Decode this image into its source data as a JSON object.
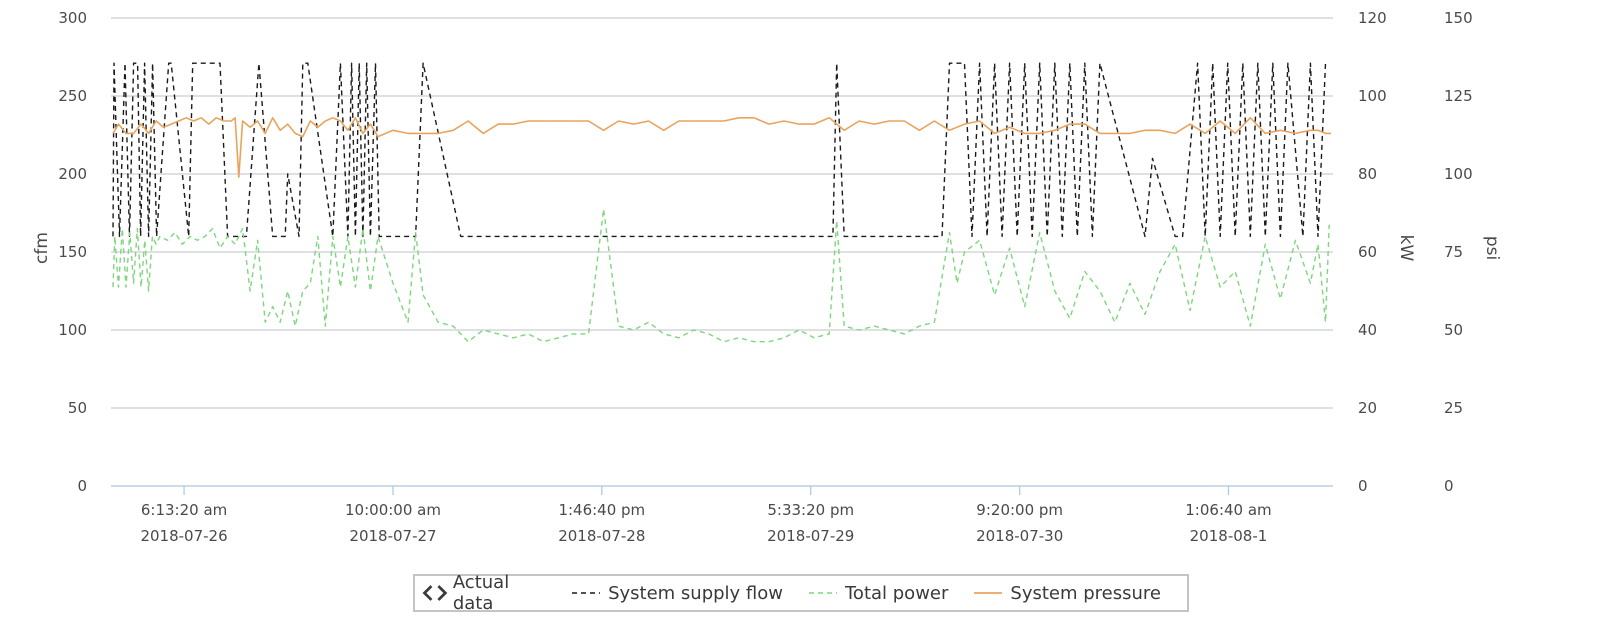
{
  "chart_data": {
    "type": "line",
    "xlabel": "",
    "x_ticks": [
      {
        "time": "6:13:20 am",
        "date": "2018-07-26"
      },
      {
        "time": "10:00:00 am",
        "date": "2018-07-27"
      },
      {
        "time": "1:46:40 pm",
        "date": "2018-07-28"
      },
      {
        "time": "5:33:20 pm",
        "date": "2018-07-29"
      },
      {
        "time": "9:20:00 pm",
        "date": "2018-07-30"
      },
      {
        "time": "1:06:40 am",
        "date": "2018-08-1"
      }
    ],
    "x_range": [
      "2018-07-25T20:30",
      "2018-08-01T15:00"
    ],
    "axes": {
      "left": {
        "label": "cfm",
        "min": 0,
        "max": 300,
        "ticks": [
          0,
          50,
          100,
          150,
          200,
          250,
          300
        ]
      },
      "right1": {
        "label": "kW",
        "min": 0,
        "max": 120,
        "ticks": [
          0,
          20,
          40,
          60,
          80,
          100,
          120
        ]
      },
      "right2": {
        "label": "psi",
        "min": 0,
        "max": 150,
        "ticks": [
          0,
          25,
          50,
          75,
          100,
          125,
          150
        ]
      }
    },
    "grid": true,
    "legend": {
      "placement": "bottom-center",
      "toggle_label": "Actual data",
      "items": [
        "System supply flow",
        "Total power",
        "System pressure"
      ]
    },
    "series": [
      {
        "name": "System supply flow",
        "axis": "left",
        "color": "#1a1a1a",
        "dash": "5,4",
        "x": [
          "2018-07-25T20:30",
          "2018-07-25T20:54",
          "2018-07-25T21:38",
          "2018-07-25T22:22",
          "2018-07-25T22:58",
          "2018-07-25T23:30",
          "2018-07-26T00:02",
          "2018-07-26T00:26",
          "2018-07-26T00:58",
          "2018-07-26T01:30",
          "2018-07-26T02:02",
          "2018-07-26T02:34",
          "2018-07-26T04:10",
          "2018-07-26T04:30",
          "2018-07-26T06:50",
          "2018-07-26T07:22",
          "2018-07-26T11:00",
          "2018-07-26T12:00",
          "2018-07-26T14:30",
          "2018-07-26T16:10",
          "2018-07-26T18:00",
          "2018-07-26T19:40",
          "2018-07-26T20:00",
          "2018-07-26T21:30",
          "2018-07-26T22:00",
          "2018-07-26T22:40",
          "2018-07-27T02:00",
          "2018-07-27T03:00",
          "2018-07-27T04:00",
          "2018-07-27T04:30",
          "2018-07-27T05:00",
          "2018-07-27T05:30",
          "2018-07-27T06:00",
          "2018-07-27T06:30",
          "2018-07-27T07:00",
          "2018-07-27T07:40",
          "2018-07-27T08:10",
          "2018-07-27T13:00",
          "2018-07-27T14:00",
          "2018-07-27T19:00",
          "2018-07-27T20:00",
          "2018-07-29T20:30",
          "2018-07-29T21:00",
          "2018-07-29T22:00",
          "2018-07-30T11:00",
          "2018-07-30T12:00",
          "2018-07-30T14:00",
          "2018-07-30T15:00",
          "2018-07-30T16:00",
          "2018-07-30T17:00",
          "2018-07-30T18:00",
          "2018-07-30T19:00",
          "2018-07-30T20:00",
          "2018-07-30T21:00",
          "2018-07-30T22:00",
          "2018-07-30T23:00",
          "2018-07-31T00:00",
          "2018-07-31T01:00",
          "2018-07-31T02:00",
          "2018-07-31T03:00",
          "2018-07-31T04:00",
          "2018-07-31T05:00",
          "2018-07-31T06:00",
          "2018-07-31T07:00",
          "2018-07-31T08:00",
          "2018-07-31T14:00",
          "2018-07-31T15:00",
          "2018-07-31T18:00",
          "2018-07-31T19:00",
          "2018-07-31T21:00",
          "2018-07-31T22:00",
          "2018-07-31T23:00",
          "2018-08-01T00:00",
          "2018-08-01T01:00",
          "2018-08-01T02:00",
          "2018-08-01T03:00",
          "2018-08-01T04:00",
          "2018-08-01T05:00",
          "2018-08-01T06:00",
          "2018-08-01T07:00",
          "2018-08-01T08:00",
          "2018-08-01T09:00",
          "2018-08-01T11:00",
          "2018-08-01T12:00",
          "2018-08-01T13:00",
          "2018-08-01T14:00"
        ],
        "y": [
          160,
          271,
          160,
          271,
          160,
          271,
          271,
          160,
          271,
          160,
          271,
          160,
          271,
          271,
          160,
          271,
          271,
          160,
          160,
          271,
          160,
          160,
          200,
          160,
          271,
          271,
          160,
          271,
          160,
          271,
          160,
          271,
          160,
          271,
          160,
          271,
          160,
          160,
          271,
          160,
          160,
          160,
          271,
          160,
          160,
          271,
          271,
          160,
          271,
          160,
          271,
          160,
          271,
          160,
          271,
          160,
          271,
          160,
          271,
          160,
          271,
          160,
          271,
          160,
          271,
          160,
          210,
          160,
          160,
          271,
          160,
          271,
          160,
          271,
          160,
          271,
          160,
          271,
          160,
          271,
          160,
          271,
          160,
          271,
          160,
          271
        ]
      },
      {
        "name": "Total power",
        "axis": "right1",
        "color": "#7ed67e",
        "dash": "5,4",
        "x": [
          "2018-07-25T20:30",
          "2018-07-25T21:00",
          "2018-07-25T21:30",
          "2018-07-25T22:00",
          "2018-07-25T22:30",
          "2018-07-25T23:00",
          "2018-07-25T23:30",
          "2018-07-26T00:00",
          "2018-07-26T00:30",
          "2018-07-26T01:00",
          "2018-07-26T01:30",
          "2018-07-26T02:00",
          "2018-07-26T02:30",
          "2018-07-26T03:00",
          "2018-07-26T04:00",
          "2018-07-26T05:00",
          "2018-07-26T06:00",
          "2018-07-26T07:00",
          "2018-07-26T08:00",
          "2018-07-26T09:00",
          "2018-07-26T10:00",
          "2018-07-26T11:00",
          "2018-07-26T12:00",
          "2018-07-26T13:00",
          "2018-07-26T14:00",
          "2018-07-26T15:00",
          "2018-07-26T16:00",
          "2018-07-26T17:00",
          "2018-07-26T18:00",
          "2018-07-26T19:00",
          "2018-07-26T20:00",
          "2018-07-26T21:00",
          "2018-07-26T22:00",
          "2018-07-26T23:00",
          "2018-07-27T00:00",
          "2018-07-27T01:00",
          "2018-07-27T02:00",
          "2018-07-27T03:00",
          "2018-07-27T04:00",
          "2018-07-27T05:00",
          "2018-07-27T06:00",
          "2018-07-27T07:00",
          "2018-07-27T08:00",
          "2018-07-27T10:00",
          "2018-07-27T12:00",
          "2018-07-27T13:00",
          "2018-07-27T14:00",
          "2018-07-27T16:00",
          "2018-07-27T18:00",
          "2018-07-27T20:00",
          "2018-07-27T22:00",
          "2018-07-28T00:00",
          "2018-07-28T02:00",
          "2018-07-28T04:00",
          "2018-07-28T06:00",
          "2018-07-28T08:00",
          "2018-07-28T10:00",
          "2018-07-28T12:00",
          "2018-07-28T14:00",
          "2018-07-28T16:00",
          "2018-07-28T18:00",
          "2018-07-28T20:00",
          "2018-07-28T22:00",
          "2018-07-29T00:00",
          "2018-07-29T02:00",
          "2018-07-29T04:00",
          "2018-07-29T06:00",
          "2018-07-29T08:00",
          "2018-07-29T10:00",
          "2018-07-29T12:00",
          "2018-07-29T14:00",
          "2018-07-29T16:00",
          "2018-07-29T18:00",
          "2018-07-29T20:00",
          "2018-07-29T21:00",
          "2018-07-29T22:00",
          "2018-07-30T00:00",
          "2018-07-30T02:00",
          "2018-07-30T04:00",
          "2018-07-30T06:00",
          "2018-07-30T08:00",
          "2018-07-30T10:00",
          "2018-07-30T12:00",
          "2018-07-30T13:00",
          "2018-07-30T14:00",
          "2018-07-30T16:00",
          "2018-07-30T18:00",
          "2018-07-30T20:00",
          "2018-07-30T22:00",
          "2018-07-31T00:00",
          "2018-07-31T02:00",
          "2018-07-31T04:00",
          "2018-07-31T06:00",
          "2018-07-31T08:00",
          "2018-07-31T10:00",
          "2018-07-31T12:00",
          "2018-07-31T14:00",
          "2018-07-31T16:00",
          "2018-07-31T18:00",
          "2018-07-31T20:00",
          "2018-07-31T22:00",
          "2018-08-01T00:00",
          "2018-08-01T02:00",
          "2018-08-01T04:00",
          "2018-08-01T06:00",
          "2018-08-01T08:00",
          "2018-08-01T10:00",
          "2018-08-01T12:00",
          "2018-08-01T13:00",
          "2018-08-01T14:00",
          "2018-08-01T14:30"
        ],
        "y": [
          51,
          64,
          51,
          66,
          51,
          65,
          52,
          66,
          51,
          63,
          50,
          64,
          62,
          64,
          63,
          65,
          62,
          64,
          63,
          64,
          66,
          61,
          64,
          62,
          66,
          50,
          63,
          42,
          46,
          42,
          50,
          41,
          50,
          52,
          64,
          41,
          64,
          51,
          64,
          51,
          66,
          50,
          64,
          52,
          42,
          65,
          49,
          42,
          41,
          37,
          40,
          39,
          38,
          39,
          37,
          38,
          39,
          39,
          71,
          41,
          40,
          42,
          39,
          38,
          40,
          39,
          37,
          38,
          37,
          37,
          38,
          40,
          38,
          39,
          68,
          41,
          40,
          41,
          40,
          39,
          41,
          42,
          65,
          52,
          60,
          63,
          49,
          61,
          46,
          65,
          50,
          43,
          55,
          50,
          42,
          52,
          44,
          55,
          62,
          45,
          64,
          51,
          55,
          41,
          62,
          48,
          63,
          52,
          62,
          42,
          67
        ]
      },
      {
        "name": "System pressure",
        "axis": "right2",
        "color": "#e8a45e",
        "dash": "",
        "x": [
          "2018-07-25T20:30",
          "2018-07-25T21:30",
          "2018-07-25T22:30",
          "2018-07-25T23:30",
          "2018-07-26T00:30",
          "2018-07-26T01:30",
          "2018-07-26T02:30",
          "2018-07-26T03:30",
          "2018-07-26T04:30",
          "2018-07-26T05:30",
          "2018-07-26T06:30",
          "2018-07-26T07:30",
          "2018-07-26T08:30",
          "2018-07-26T09:30",
          "2018-07-26T10:30",
          "2018-07-26T11:30",
          "2018-07-26T12:30",
          "2018-07-26T13:00",
          "2018-07-26T13:30",
          "2018-07-26T14:00",
          "2018-07-26T15:00",
          "2018-07-26T16:00",
          "2018-07-26T17:00",
          "2018-07-26T18:00",
          "2018-07-26T19:00",
          "2018-07-26T20:00",
          "2018-07-26T21:00",
          "2018-07-26T22:00",
          "2018-07-26T23:00",
          "2018-07-27T00:00",
          "2018-07-27T01:00",
          "2018-07-27T02:00",
          "2018-07-27T03:00",
          "2018-07-27T04:00",
          "2018-07-27T05:00",
          "2018-07-27T06:00",
          "2018-07-27T07:00",
          "2018-07-27T08:00",
          "2018-07-27T10:00",
          "2018-07-27T12:00",
          "2018-07-27T14:00",
          "2018-07-27T16:00",
          "2018-07-27T18:00",
          "2018-07-27T20:00",
          "2018-07-27T22:00",
          "2018-07-28T00:00",
          "2018-07-28T02:00",
          "2018-07-28T04:00",
          "2018-07-28T06:00",
          "2018-07-28T08:00",
          "2018-07-28T10:00",
          "2018-07-28T12:00",
          "2018-07-28T14:00",
          "2018-07-28T16:00",
          "2018-07-28T18:00",
          "2018-07-28T20:00",
          "2018-07-28T22:00",
          "2018-07-29T00:00",
          "2018-07-29T02:00",
          "2018-07-29T04:00",
          "2018-07-29T06:00",
          "2018-07-29T08:00",
          "2018-07-29T10:00",
          "2018-07-29T12:00",
          "2018-07-29T14:00",
          "2018-07-29T16:00",
          "2018-07-29T18:00",
          "2018-07-29T20:00",
          "2018-07-29T22:00",
          "2018-07-30T00:00",
          "2018-07-30T02:00",
          "2018-07-30T04:00",
          "2018-07-30T06:00",
          "2018-07-30T08:00",
          "2018-07-30T10:00",
          "2018-07-30T12:00",
          "2018-07-30T14:00",
          "2018-07-30T16:00",
          "2018-07-30T18:00",
          "2018-07-30T20:00",
          "2018-07-30T22:00",
          "2018-07-31T00:00",
          "2018-07-31T02:00",
          "2018-07-31T04:00",
          "2018-07-31T06:00",
          "2018-07-31T08:00",
          "2018-07-31T10:00",
          "2018-07-31T12:00",
          "2018-07-31T14:00",
          "2018-07-31T16:00",
          "2018-07-31T18:00",
          "2018-07-31T20:00",
          "2018-07-31T22:00",
          "2018-08-01T00:00",
          "2018-08-01T02:00",
          "2018-08-01T04:00",
          "2018-08-01T06:00",
          "2018-08-01T08:00",
          "2018-08-01T10:00",
          "2018-08-01T12:00",
          "2018-08-01T13:00",
          "2018-08-01T14:00",
          "2018-08-01T15:00"
        ],
        "y": [
          113,
          116,
          113,
          113,
          116,
          113,
          117,
          115,
          116,
          117,
          118,
          117,
          118,
          116,
          118,
          117,
          117,
          118,
          99,
          117,
          115,
          117,
          113,
          118,
          114,
          116,
          113,
          112,
          117,
          115,
          117,
          118,
          117,
          114,
          118,
          113,
          116,
          112,
          114,
          113,
          113,
          113,
          114,
          117,
          113,
          116,
          116,
          117,
          117,
          117,
          117,
          117,
          114,
          117,
          116,
          117,
          114,
          117,
          117,
          117,
          117,
          118,
          118,
          116,
          117,
          116,
          116,
          118,
          114,
          117,
          116,
          117,
          117,
          114,
          117,
          114,
          116,
          117,
          113,
          115,
          113,
          113,
          114,
          116,
          116,
          113,
          113,
          113,
          114,
          114,
          113,
          116,
          113,
          117,
          113,
          118,
          113,
          114,
          113,
          114,
          114,
          113,
          113
        ]
      }
    ]
  }
}
